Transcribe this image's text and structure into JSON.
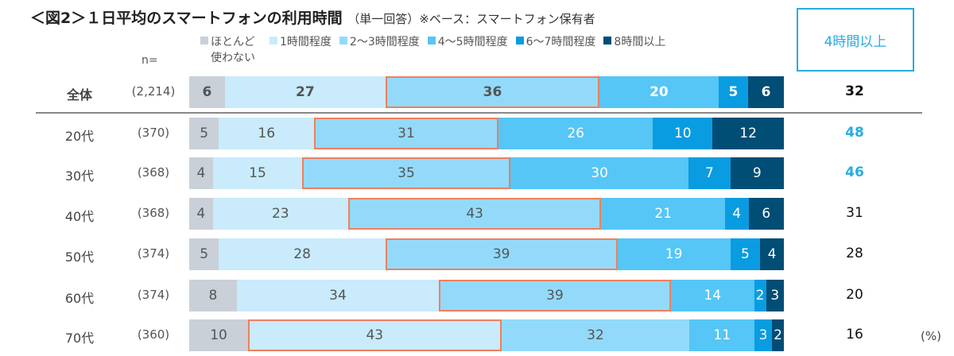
{
  "chart_data": {
    "type": "bar",
    "orientation": "horizontal",
    "stacked": true,
    "title": "＜図2＞１日平均のスマートフォンの利用時間",
    "subtitle": "（単一回答）※ベース：スマートフォン保有者",
    "n_label": "n=",
    "unit": "(%)",
    "legend": [
      "ほとんど使わない",
      "1時間程度",
      "2～3時間程度",
      "4～5時間程度",
      "6～7時間程度",
      "8時間以上"
    ],
    "colors": [
      "#c9d0d8",
      "#c9ebfb",
      "#93dafa",
      "#55c6f5",
      "#0a9ce0",
      "#004d75"
    ],
    "highlight_color": "#f07f5f",
    "total_header": "4時間以上",
    "total_accent": "#29abe2",
    "rows": [
      {
        "label": "全体",
        "n": "(2,214)",
        "values": [
          6,
          27,
          36,
          20,
          5,
          6
        ],
        "highlight": 2,
        "total": 32,
        "bold": true
      },
      {
        "label": "20代",
        "n": "(370)",
        "values": [
          5,
          16,
          31,
          26,
          10,
          12
        ],
        "highlight": 2,
        "total": 48,
        "accent": true
      },
      {
        "label": "30代",
        "n": "(368)",
        "values": [
          4,
          15,
          35,
          30,
          7,
          9
        ],
        "highlight": 2,
        "total": 46,
        "accent": true
      },
      {
        "label": "40代",
        "n": "(368)",
        "values": [
          4,
          23,
          43,
          21,
          4,
          6
        ],
        "highlight": 2,
        "total": 31
      },
      {
        "label": "50代",
        "n": "(374)",
        "values": [
          5,
          28,
          39,
          19,
          5,
          4
        ],
        "highlight": 2,
        "total": 28
      },
      {
        "label": "60代",
        "n": "(374)",
        "values": [
          8,
          34,
          39,
          14,
          2,
          3
        ],
        "highlight": 2,
        "total": 20
      },
      {
        "label": "70代",
        "n": "(360)",
        "values": [
          10,
          43,
          32,
          11,
          3,
          2
        ],
        "highlight": 1,
        "total": 16
      }
    ]
  }
}
